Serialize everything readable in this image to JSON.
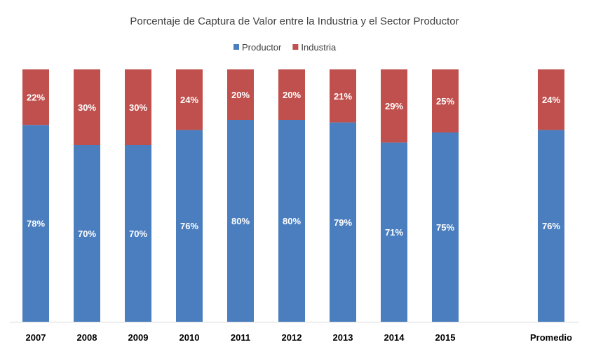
{
  "chart_data": {
    "type": "bar",
    "stacked": true,
    "percent_stacked": true,
    "title": "Porcentaje de Captura de Valor entre la Industria y el Sector Productor",
    "xlabel": "",
    "ylabel": "",
    "ylim": [
      0,
      100
    ],
    "grid": false,
    "legend_position": "top",
    "categories": [
      "2007",
      "2008",
      "2009",
      "2010",
      "2011",
      "2012",
      "2013",
      "2014",
      "2015",
      "Promedio"
    ],
    "gap_before_last": true,
    "series": [
      {
        "name": "Productor",
        "color": "#4A7EBF",
        "values": [
          78,
          70,
          70,
          76,
          80,
          80,
          79,
          71,
          75,
          76
        ],
        "labels": [
          "78%",
          "70%",
          "70%",
          "76%",
          "80%",
          "80%",
          "79%",
          "71%",
          "75%",
          "76%"
        ]
      },
      {
        "name": "Industria",
        "color": "#C0504D",
        "values": [
          22,
          30,
          30,
          24,
          20,
          20,
          21,
          29,
          25,
          24
        ],
        "labels": [
          "22%",
          "30%",
          "30%",
          "24%",
          "20%",
          "20%",
          "21%",
          "29%",
          "25%",
          "24%"
        ]
      }
    ],
    "axis_color": "#D9D9D9",
    "label_color": "#FFFFFF",
    "text_color": "#404040",
    "tick_color": "#000000"
  }
}
